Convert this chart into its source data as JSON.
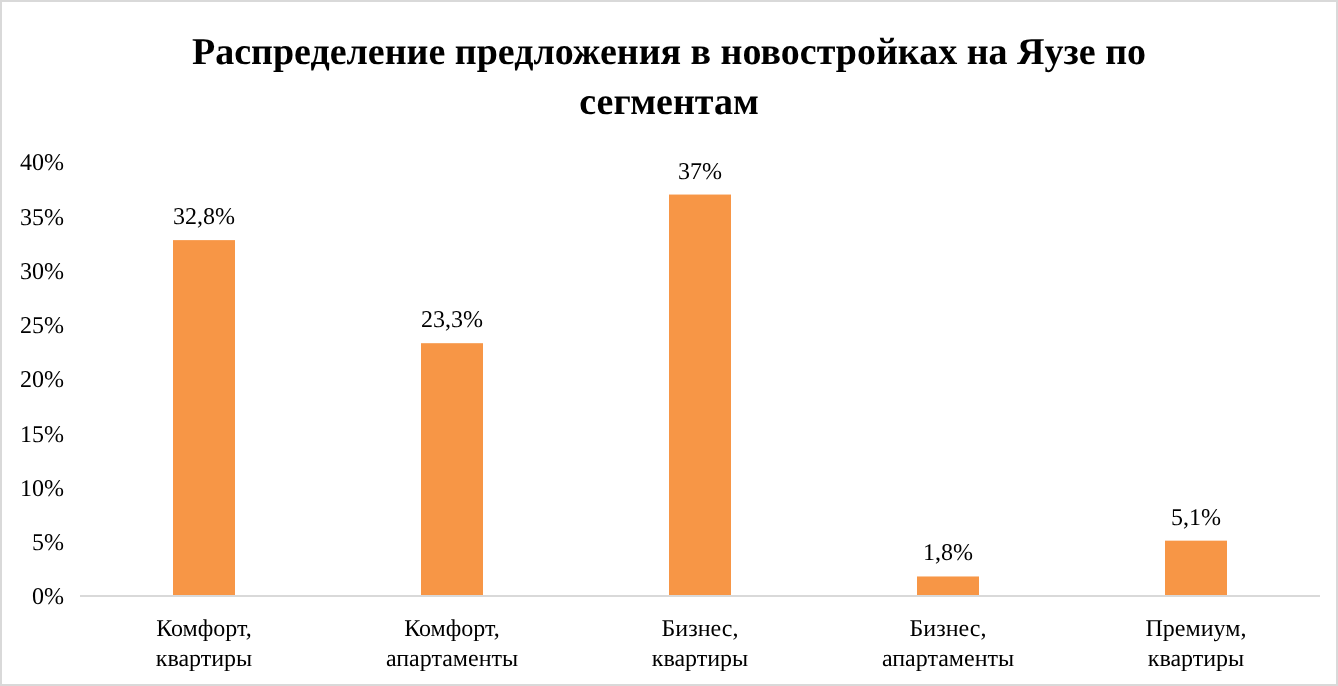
{
  "chart_data": {
    "type": "bar",
    "title": "Распределение предложения в новостройках на Яузе по сегментам",
    "categories": [
      "Комфорт, квартиры",
      "Комфорт, апартаменты",
      "Бизнес, квартиры",
      "Бизнес, апартаменты",
      "Премиум, квартиры"
    ],
    "values": [
      32.8,
      23.3,
      37,
      1.8,
      5.1
    ],
    "value_labels": [
      "32,8%",
      "23,3%",
      "37%",
      "1,8%",
      "5,1%"
    ],
    "color": "#f79646",
    "ylim": [
      0,
      40
    ],
    "yticks": [
      {
        "value": 0,
        "label": "0%"
      },
      {
        "value": 5,
        "label": "5%"
      },
      {
        "value": 10,
        "label": "10%"
      },
      {
        "value": 15,
        "label": "15%"
      },
      {
        "value": 20,
        "label": "20%"
      },
      {
        "value": 25,
        "label": "25%"
      },
      {
        "value": 30,
        "label": "30%"
      },
      {
        "value": 35,
        "label": "35%"
      },
      {
        "value": 40,
        "label": "40%"
      }
    ],
    "grid": false
  }
}
